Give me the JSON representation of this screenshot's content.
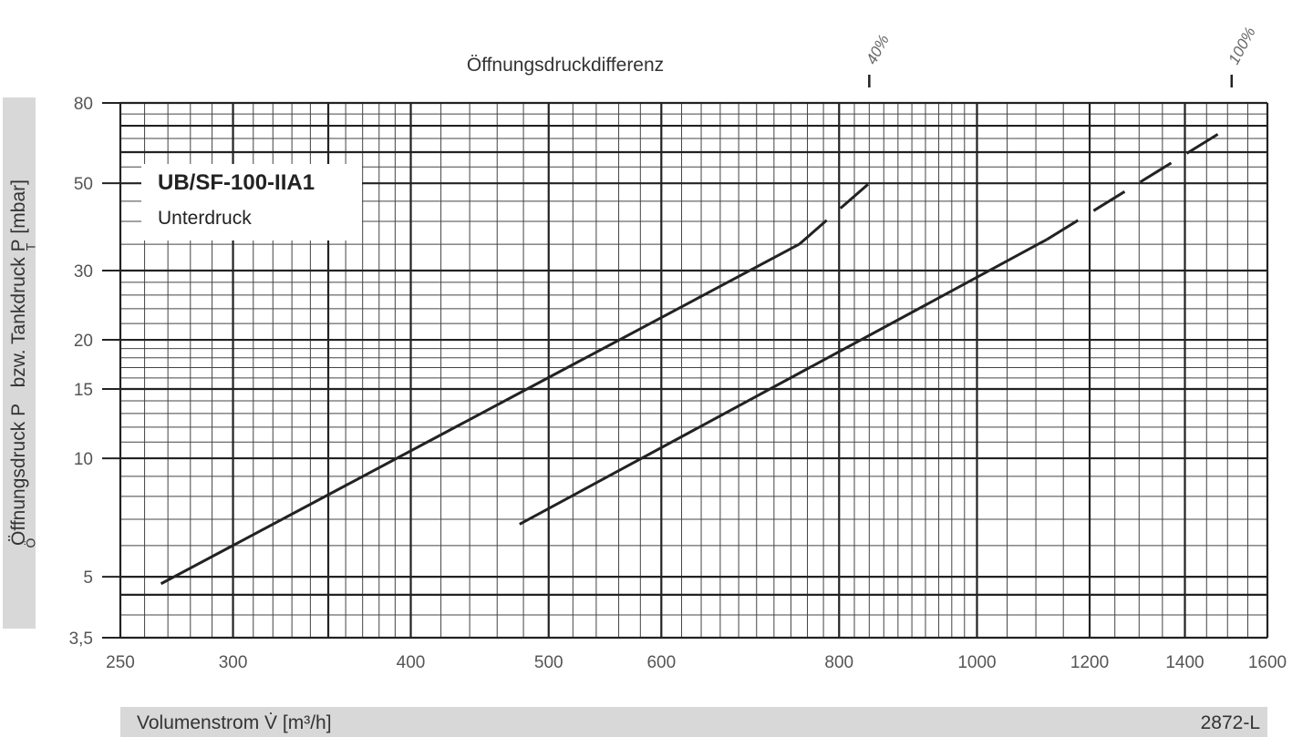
{
  "chart_data": {
    "type": "line",
    "title": "Öffnungsdruckdifferenz",
    "xlabel": "Volumenstrom V̇ [m³/h]",
    "ylabel": "Öffnungsdruck P_Ö bzw. Tankdruck P_T [mbar]",
    "x_scale": "log",
    "y_scale": "log",
    "xlim": [
      250,
      1600
    ],
    "ylim": [
      3.5,
      80
    ],
    "x_ticks": [
      250,
      300,
      400,
      500,
      600,
      800,
      1000,
      1200,
      1400,
      1600
    ],
    "x_tick_labels": [
      "250",
      "300",
      "400",
      "500",
      "600",
      "800",
      "1000",
      "1200",
      "1400",
      "1600"
    ],
    "y_ticks": [
      3.5,
      5,
      10,
      15,
      20,
      30,
      50,
      80
    ],
    "y_tick_labels": [
      "3,5",
      "5",
      "10",
      "15",
      "20",
      "30",
      "50",
      "80"
    ],
    "grid": true,
    "series": [
      {
        "name": "40%",
        "x": [
          267,
          750
        ],
        "y": [
          4.8,
          35
        ],
        "dashed_x": [
          750,
          840
        ],
        "dashed_y": [
          35,
          50
        ],
        "color": "#222222"
      },
      {
        "name": "100%",
        "x": [
          477,
          1120
        ],
        "y": [
          6.8,
          36
        ],
        "dashed_x": [
          1120,
          1510
        ],
        "dashed_y": [
          36,
          70
        ],
        "color": "#222222"
      }
    ],
    "legend": {
      "title": "UB/SF-100-IIA1",
      "subtitle": "Unterdruck",
      "position": "top-left"
    }
  },
  "ylabel_display": "Öffnungsdruck P   bzw. Tankdruck P [mbar]",
  "xlabel_display": "Volumenstrom V̇ [m³/h]",
  "doc_id": "2872-L"
}
